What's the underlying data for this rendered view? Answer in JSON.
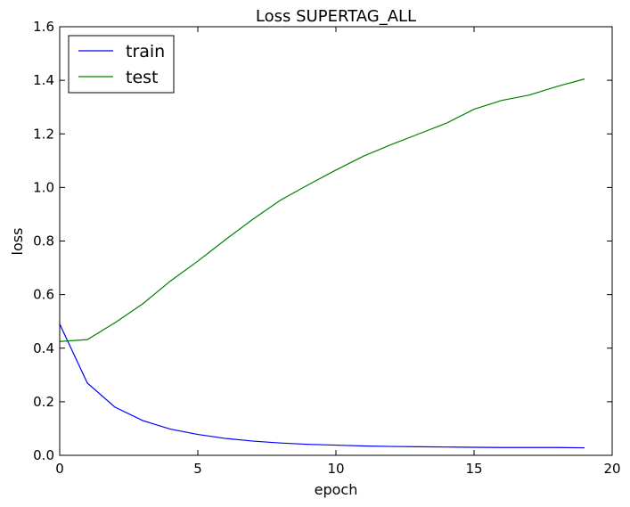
{
  "chart_data": {
    "type": "line",
    "title": "Loss SUPERTAG_ALL",
    "xlabel": "epoch",
    "ylabel": "loss",
    "xlim": [
      0,
      20
    ],
    "ylim": [
      0.0,
      1.6
    ],
    "xticks": [
      0,
      5,
      10,
      15,
      20
    ],
    "yticks": [
      0.0,
      0.2,
      0.4,
      0.6,
      0.8,
      1.0,
      1.2,
      1.4,
      1.6
    ],
    "xtick_labels": [
      "0",
      "5",
      "10",
      "15",
      "20"
    ],
    "ytick_labels": [
      "0.0",
      "0.2",
      "0.4",
      "0.6",
      "0.8",
      "1.0",
      "1.2",
      "1.4",
      "1.6"
    ],
    "grid": false,
    "legend_position": "top-left",
    "x": [
      0,
      1,
      2,
      3,
      4,
      5,
      6,
      7,
      8,
      9,
      10,
      11,
      12,
      13,
      14,
      15,
      16,
      17,
      18,
      19
    ],
    "series": [
      {
        "name": "train",
        "color": "#0000ff",
        "values": [
          0.49,
          0.27,
          0.18,
          0.13,
          0.098,
          0.078,
          0.063,
          0.053,
          0.046,
          0.041,
          0.038,
          0.035,
          0.033,
          0.032,
          0.031,
          0.03,
          0.029,
          0.029,
          0.029,
          0.028
        ]
      },
      {
        "name": "test",
        "color": "#008000",
        "values": [
          0.425,
          0.432,
          0.495,
          0.565,
          0.65,
          0.725,
          0.805,
          0.882,
          0.953,
          1.01,
          1.065,
          1.117,
          1.16,
          1.2,
          1.24,
          1.292,
          1.325,
          1.345,
          1.377,
          1.405
        ]
      }
    ]
  }
}
